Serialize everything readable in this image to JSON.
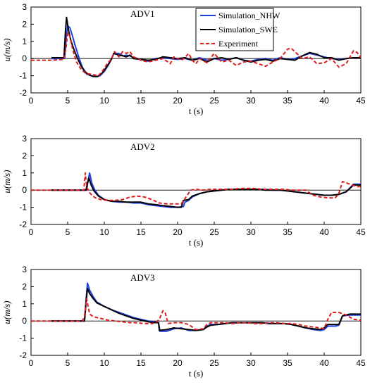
{
  "chart_data": [
    {
      "type": "line",
      "title": "ADV1",
      "xlabel": "t (s)",
      "ylabel": "u(m/s)",
      "xlim": [
        0,
        45
      ],
      "ylim": [
        -2,
        3
      ],
      "xticks": [
        "0",
        "5",
        "10",
        "15",
        "20",
        "25",
        "30",
        "35",
        "40",
        "45"
      ],
      "yticks": [
        "3",
        "2",
        "1",
        "0",
        "-1",
        "-2"
      ],
      "grid": false,
      "legend": "top-right",
      "series": [
        {
          "name": "Simulation_NHW",
          "color": "#1f3fe6",
          "style": "solid",
          "x": [
            2.8,
            4.6,
            4.8,
            5.0,
            5.3,
            5.6,
            6.0,
            6.5,
            7.0,
            7.6,
            8.2,
            8.8,
            9.4,
            10.0,
            10.6,
            11.0,
            11.3,
            12.0,
            12.6,
            13.0,
            13.5,
            14.0,
            15.0,
            16.0,
            17.0,
            18.0,
            19.0,
            20.0,
            21.0,
            22.0,
            23.0,
            24.0,
            25.0,
            26.0,
            27.0,
            28.0,
            29.0,
            30.0,
            31.0,
            32.0,
            33.0,
            34.0,
            35.0,
            36.0,
            37.0,
            38.0,
            39.0,
            40.0,
            41.0,
            42.0,
            43.0,
            44.0,
            45.0
          ],
          "y": [
            0.0,
            0.0,
            1.2,
            1.9,
            1.8,
            1.4,
            0.8,
            0.1,
            -0.5,
            -0.9,
            -1.0,
            -1.05,
            -1.0,
            -0.75,
            -0.35,
            0.0,
            0.3,
            0.3,
            0.15,
            0.2,
            0.15,
            0.05,
            -0.05,
            -0.15,
            0.0,
            0.05,
            0.0,
            -0.05,
            0.0,
            -0.1,
            0.05,
            -0.1,
            0.0,
            -0.1,
            -0.05,
            0.05,
            -0.1,
            -0.15,
            -0.05,
            0.0,
            -0.1,
            0.05,
            -0.05,
            0.0,
            0.15,
            0.3,
            0.2,
            0.1,
            0.0,
            -0.05,
            0.0,
            0.05,
            0.05
          ]
        },
        {
          "name": "Simulation_SWE",
          "color": "#000000",
          "style": "solid",
          "x": [
            2.8,
            4.5,
            4.7,
            4.85,
            5.1,
            5.4,
            5.8,
            6.3,
            6.8,
            7.3,
            7.9,
            8.5,
            9.1,
            9.7,
            10.3,
            10.9,
            11.3,
            12.0,
            12.6,
            13.0,
            13.5,
            14.0,
            15.0,
            16.0,
            17.0,
            18.0,
            19.0,
            20.0,
            21.0,
            22.0,
            23.0,
            24.0,
            25.0,
            26.0,
            27.0,
            28.0,
            29.0,
            30.0,
            31.0,
            32.0,
            33.0,
            34.0,
            35.0,
            36.0,
            37.0,
            38.0,
            39.0,
            40.0,
            41.0,
            42.0,
            43.0,
            44.0,
            45.0
          ],
          "y": [
            0.05,
            0.05,
            1.6,
            2.4,
            1.7,
            1.1,
            0.6,
            0.05,
            -0.4,
            -0.75,
            -0.95,
            -1.05,
            -1.05,
            -0.85,
            -0.5,
            -0.1,
            0.3,
            0.2,
            0.15,
            0.1,
            0.2,
            0.0,
            -0.05,
            -0.1,
            -0.05,
            0.1,
            0.05,
            0.0,
            0.05,
            -0.1,
            0.0,
            -0.2,
            0.0,
            0.05,
            -0.05,
            0.05,
            -0.1,
            -0.2,
            -0.1,
            -0.05,
            -0.15,
            0.0,
            -0.05,
            -0.1,
            0.15,
            0.35,
            0.25,
            0.05,
            0.05,
            -0.1,
            0.0,
            0.05,
            0.05
          ]
        },
        {
          "name": "Experiment",
          "color": "#e01b1b",
          "style": "dashed",
          "x": [
            0.0,
            3.0,
            4.5,
            4.8,
            5.0,
            5.3,
            5.7,
            6.2,
            6.8,
            7.4,
            8.0,
            8.6,
            9.2,
            9.8,
            10.4,
            11.0,
            11.4,
            12.0,
            12.5,
            13.0,
            13.5,
            14.0,
            14.5,
            15.0,
            16.0,
            17.0,
            18.0,
            19.0,
            19.5,
            20.5,
            21.0,
            21.5,
            22.0,
            22.5,
            23.0,
            24.0,
            25.0,
            26.0,
            27.0,
            28.0,
            29.0,
            30.0,
            31.0,
            32.0,
            33.0,
            34.0,
            35.0,
            35.5,
            36.0,
            37.0,
            38.0,
            39.0,
            40.0,
            41.0,
            42.0,
            43.0,
            44.0,
            44.5,
            45.0
          ],
          "y": [
            -0.1,
            -0.1,
            -0.05,
            0.7,
            1.5,
            1.3,
            0.5,
            -0.2,
            -0.6,
            -0.85,
            -0.9,
            -0.95,
            -1.0,
            -0.7,
            -0.3,
            0.0,
            0.4,
            0.1,
            0.4,
            0.3,
            0.4,
            0.1,
            0.0,
            -0.1,
            -0.2,
            -0.1,
            0.0,
            -0.3,
            0.1,
            -0.1,
            0.05,
            0.3,
            -0.1,
            -0.3,
            0.0,
            -0.25,
            0.3,
            -0.2,
            -0.1,
            -0.4,
            -0.2,
            -0.15,
            -0.3,
            -0.45,
            -0.2,
            0.0,
            0.55,
            0.6,
            0.4,
            0.0,
            0.1,
            -0.3,
            -0.25,
            0.0,
            -0.5,
            -0.3,
            0.45,
            0.35,
            0.05
          ]
        }
      ]
    },
    {
      "type": "line",
      "title": "ADV2",
      "xlabel": "t (s)",
      "ylabel": "u(m/s)",
      "xlim": [
        0,
        45
      ],
      "ylim": [
        -2,
        3
      ],
      "xticks": [
        "0",
        "5",
        "10",
        "15",
        "20",
        "25",
        "30",
        "35",
        "40",
        "45"
      ],
      "yticks": [
        "3",
        "2",
        "1",
        "0",
        "-1",
        "-2"
      ],
      "grid": false,
      "series": [
        {
          "name": "Simulation_NHW",
          "color": "#1f3fe6",
          "style": "solid",
          "x": [
            2.8,
            7.6,
            7.8,
            8.0,
            8.3,
            8.7,
            9.2,
            10.0,
            11.0,
            12.0,
            13.0,
            14.0,
            15.0,
            16.0,
            17.0,
            18.0,
            19.0,
            20.0,
            20.8,
            21.0,
            21.5,
            22.0,
            23.0,
            24.0,
            25.0,
            26.0,
            27.0,
            28.0,
            29.0,
            30.0,
            31.0,
            32.0,
            33.0,
            34.0,
            35.0,
            36.0,
            37.0,
            38.0,
            39.0,
            40.0,
            41.0,
            42.0,
            43.0,
            44.0,
            45.0
          ],
          "y": [
            0.0,
            0.0,
            0.6,
            1.0,
            0.4,
            0.0,
            -0.3,
            -0.55,
            -0.65,
            -0.7,
            -0.7,
            -0.75,
            -0.75,
            -0.85,
            -0.9,
            -0.95,
            -1.0,
            -1.0,
            -0.95,
            -0.7,
            -0.6,
            -0.4,
            -0.2,
            -0.1,
            -0.05,
            0.0,
            0.05,
            0.05,
            0.05,
            0.05,
            0.05,
            0.05,
            0.0,
            0.0,
            -0.05,
            -0.1,
            -0.15,
            -0.2,
            -0.25,
            -0.3,
            -0.3,
            -0.25,
            -0.1,
            0.35,
            0.35
          ]
        },
        {
          "name": "Simulation_SWE",
          "color": "#000000",
          "style": "solid",
          "x": [
            2.8,
            7.5,
            7.7,
            7.9,
            8.2,
            8.6,
            9.2,
            10.0,
            11.0,
            12.0,
            13.0,
            14.0,
            15.0,
            16.0,
            17.0,
            18.0,
            19.0,
            20.0,
            20.5,
            20.8,
            21.5,
            22.0,
            23.0,
            24.0,
            25.0,
            26.0,
            27.0,
            28.0,
            29.0,
            30.0,
            31.0,
            32.0,
            33.0,
            34.0,
            35.0,
            36.0,
            37.0,
            38.0,
            39.0,
            40.0,
            41.0,
            42.0,
            43.0,
            44.0,
            45.0
          ],
          "y": [
            0.0,
            0.0,
            0.4,
            0.7,
            0.3,
            -0.05,
            -0.35,
            -0.55,
            -0.65,
            -0.65,
            -0.7,
            -0.7,
            -0.7,
            -0.8,
            -0.85,
            -0.9,
            -0.95,
            -1.0,
            -1.0,
            -0.6,
            -0.55,
            -0.35,
            -0.2,
            -0.1,
            -0.05,
            0.0,
            0.05,
            0.05,
            0.05,
            0.05,
            0.05,
            0.0,
            0.0,
            0.0,
            -0.05,
            -0.1,
            -0.15,
            -0.2,
            -0.25,
            -0.3,
            -0.3,
            -0.25,
            -0.1,
            0.3,
            0.3
          ]
        },
        {
          "name": "Experiment",
          "color": "#e01b1b",
          "style": "dashed",
          "x": [
            0.0,
            7.2,
            7.4,
            7.6,
            7.9,
            8.3,
            8.8,
            9.5,
            10.5,
            11.5,
            12.5,
            13.5,
            14.5,
            15.5,
            16.5,
            17.5,
            18.5,
            19.5,
            20.5,
            21.0,
            21.3,
            21.8,
            22.5,
            23.5,
            24.5,
            25.5,
            26.5,
            27.5,
            28.5,
            29.5,
            30.5,
            31.5,
            32.5,
            33.5,
            34.5,
            35.5,
            36.5,
            37.5,
            38.5,
            39.5,
            40.5,
            41.5,
            42.0,
            42.5,
            43.5,
            44.5,
            45.0
          ],
          "y": [
            0.0,
            0.0,
            1.0,
            0.2,
            -0.1,
            -0.3,
            -0.45,
            -0.55,
            -0.6,
            -0.6,
            -0.55,
            -0.4,
            -0.35,
            -0.4,
            -0.55,
            -0.75,
            -0.8,
            -0.8,
            -0.8,
            -0.5,
            -0.3,
            0.0,
            0.05,
            0.0,
            0.05,
            0.05,
            0.05,
            0.05,
            0.1,
            0.1,
            0.1,
            0.05,
            0.05,
            0.05,
            0.05,
            0.0,
            0.0,
            0.0,
            -0.3,
            -0.4,
            -0.45,
            -0.45,
            -0.2,
            0.5,
            0.35,
            0.2,
            0.2
          ]
        }
      ]
    },
    {
      "type": "line",
      "title": "ADV3",
      "xlabel": "t (s)",
      "ylabel": "u(m/s)",
      "xlim": [
        0,
        45
      ],
      "ylim": [
        -2,
        3
      ],
      "xticks": [
        "0",
        "5",
        "10",
        "15",
        "20",
        "25",
        "30",
        "35",
        "40",
        "45"
      ],
      "yticks": [
        "3",
        "2",
        "1",
        "0",
        "-1",
        "-2"
      ],
      "grid": false,
      "series": [
        {
          "name": "Simulation_NHW",
          "color": "#1f3fe6",
          "style": "solid",
          "x": [
            2.8,
            7.3,
            7.5,
            7.7,
            8.0,
            8.5,
            9.0,
            10.0,
            11.0,
            12.0,
            13.0,
            14.0,
            15.0,
            16.0,
            17.0,
            17.4,
            17.6,
            18.5,
            19.5,
            20.5,
            21.5,
            22.5,
            23.5,
            24.0,
            24.5,
            25.5,
            26.5,
            27.5,
            28.5,
            29.5,
            30.5,
            31.5,
            32.5,
            33.5,
            34.5,
            35.5,
            36.5,
            37.5,
            38.5,
            39.5,
            40.0,
            40.5,
            41.5,
            42.0,
            42.5,
            43.5,
            44.5,
            45.0
          ],
          "y": [
            0.0,
            0.0,
            1.2,
            2.2,
            1.8,
            1.4,
            1.1,
            0.85,
            0.65,
            0.5,
            0.35,
            0.2,
            0.1,
            0.0,
            -0.05,
            -0.1,
            -0.6,
            -0.6,
            -0.45,
            -0.4,
            -0.55,
            -0.55,
            -0.5,
            -0.3,
            -0.2,
            -0.2,
            -0.15,
            -0.1,
            -0.1,
            -0.1,
            -0.1,
            -0.1,
            -0.15,
            -0.15,
            -0.15,
            -0.2,
            -0.3,
            -0.4,
            -0.5,
            -0.55,
            -0.5,
            -0.3,
            -0.3,
            -0.25,
            0.3,
            0.35,
            0.35,
            0.35
          ]
        },
        {
          "name": "Simulation_SWE",
          "color": "#000000",
          "style": "solid",
          "x": [
            2.8,
            7.3,
            7.5,
            7.7,
            8.0,
            8.5,
            9.0,
            10.0,
            11.0,
            12.0,
            13.0,
            14.0,
            15.0,
            16.0,
            17.0,
            17.4,
            17.5,
            18.5,
            19.5,
            20.5,
            21.5,
            22.5,
            23.5,
            24.0,
            24.5,
            25.5,
            26.5,
            27.5,
            28.5,
            29.5,
            30.5,
            31.5,
            32.5,
            33.5,
            34.5,
            35.5,
            36.5,
            37.5,
            38.5,
            39.5,
            40.0,
            40.5,
            41.5,
            42.0,
            42.5,
            43.5,
            44.5,
            45.0
          ],
          "y": [
            0.0,
            0.0,
            1.0,
            1.9,
            1.6,
            1.3,
            1.05,
            0.85,
            0.65,
            0.45,
            0.3,
            0.15,
            0.05,
            -0.05,
            -0.1,
            -0.1,
            -0.55,
            -0.5,
            -0.4,
            -0.45,
            -0.5,
            -0.55,
            -0.5,
            -0.35,
            -0.25,
            -0.2,
            -0.15,
            -0.1,
            -0.1,
            -0.1,
            -0.1,
            -0.1,
            -0.15,
            -0.15,
            -0.15,
            -0.2,
            -0.3,
            -0.4,
            -0.45,
            -0.5,
            -0.4,
            -0.2,
            -0.2,
            -0.2,
            0.3,
            0.4,
            0.4,
            0.4
          ]
        },
        {
          "name": "Experiment",
          "color": "#e01b1b",
          "style": "dashed",
          "x": [
            0.0,
            7.0,
            7.3,
            7.6,
            8.0,
            8.5,
            9.5,
            10.5,
            11.5,
            12.5,
            13.5,
            14.5,
            15.5,
            16.5,
            17.0,
            17.5,
            18.0,
            18.3,
            18.7,
            19.5,
            20.5,
            21.5,
            22.5,
            23.5,
            24.0,
            24.5,
            25.5,
            26.5,
            27.5,
            28.5,
            29.5,
            30.5,
            31.5,
            32.5,
            33.5,
            34.5,
            35.5,
            36.5,
            37.5,
            38.5,
            39.5,
            40.0,
            40.5,
            41.0,
            42.0,
            43.0,
            44.0,
            45.0
          ],
          "y": [
            0.0,
            0.0,
            0.3,
            1.3,
            0.4,
            0.25,
            0.15,
            0.05,
            0.0,
            -0.05,
            -0.1,
            -0.1,
            -0.15,
            -0.15,
            -0.1,
            0.1,
            0.6,
            0.5,
            -0.15,
            -0.1,
            -0.1,
            -0.2,
            -0.5,
            -0.45,
            -0.2,
            -0.1,
            -0.1,
            -0.1,
            -0.15,
            -0.1,
            -0.1,
            -0.15,
            -0.15,
            -0.1,
            -0.1,
            -0.15,
            -0.15,
            -0.2,
            -0.3,
            -0.35,
            -0.4,
            -0.45,
            0.1,
            0.5,
            0.5,
            0.35,
            0.1,
            0.05
          ]
        }
      ]
    }
  ]
}
